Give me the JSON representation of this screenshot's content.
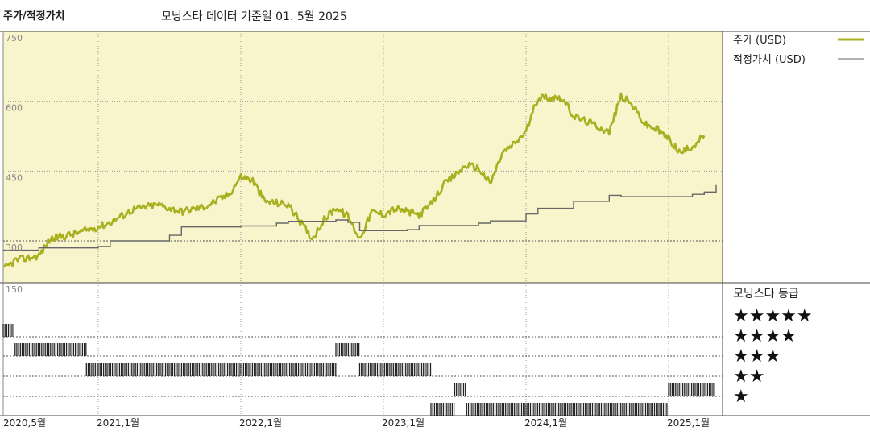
{
  "header": {
    "title": "주가/적정가치",
    "subtitle": "모닝스타 데이터 기준일 01. 5월 2025"
  },
  "colors": {
    "price": "#a8b020",
    "fair_value": "#666666",
    "plot_bg": "#f8f4cc",
    "grid": "#999999"
  },
  "chart_data": {
    "type": "line",
    "title": "주가/적정가치",
    "subtitle": "모닝스타 데이터 기준일 01. 5월 2025",
    "x_ticks": [
      "2020,5월",
      "2021,1월",
      "2022,1월",
      "2023,1월",
      "2024,1월",
      "2025,1월"
    ],
    "x_tick_dates": [
      "2020-05",
      "2021-01",
      "2022-01",
      "2023-01",
      "2024-01",
      "2025-01"
    ],
    "x_range": [
      "2020-05",
      "2025-05"
    ],
    "y_ticks": [
      "750",
      "600",
      "450",
      "300",
      "150"
    ],
    "ylim": [
      150,
      750
    ],
    "grid": true,
    "legend": {
      "position": "right",
      "items": [
        "주가 (USD)",
        "적정가치 (USD)"
      ]
    },
    "series": [
      {
        "name": "주가 (USD)",
        "points": [
          [
            "2020-05",
            238
          ],
          [
            "2020-06",
            258
          ],
          [
            "2020-08",
            268
          ],
          [
            "2020-09",
            305
          ],
          [
            "2020-11",
            315
          ],
          [
            "2021-01",
            330
          ],
          [
            "2021-02",
            340
          ],
          [
            "2021-04",
            368
          ],
          [
            "2021-06",
            378
          ],
          [
            "2021-08",
            363
          ],
          [
            "2021-10",
            374
          ],
          [
            "2021-12",
            400
          ],
          [
            "2022-01",
            438
          ],
          [
            "2022-02",
            430
          ],
          [
            "2022-03",
            385
          ],
          [
            "2022-05",
            378
          ],
          [
            "2022-07",
            305
          ],
          [
            "2022-08",
            345
          ],
          [
            "2022-09",
            372
          ],
          [
            "2022-10",
            353
          ],
          [
            "2022-11",
            305
          ],
          [
            "2022-12",
            362
          ],
          [
            "2023-01",
            357
          ],
          [
            "2023-02",
            369
          ],
          [
            "2023-04",
            356
          ],
          [
            "2023-05",
            378
          ],
          [
            "2023-06",
            418
          ],
          [
            "2023-08",
            463
          ],
          [
            "2023-09",
            456
          ],
          [
            "2023-10",
            423
          ],
          [
            "2023-11",
            488
          ],
          [
            "2023-12",
            508
          ],
          [
            "2024-01",
            535
          ],
          [
            "2024-02",
            608
          ],
          [
            "2024-04",
            608
          ],
          [
            "2024-05",
            568
          ],
          [
            "2024-07",
            547
          ],
          [
            "2024-08",
            533
          ],
          [
            "2024-09",
            612
          ],
          [
            "2024-10",
            590
          ],
          [
            "2024-11",
            550
          ],
          [
            "2024-12",
            540
          ],
          [
            "2025-01",
            520
          ],
          [
            "2025-02",
            488
          ],
          [
            "2025-03",
            503
          ],
          [
            "2025-04",
            526
          ]
        ]
      },
      {
        "name": "적정가치 (USD)",
        "points": [
          [
            "2020-05",
            280
          ],
          [
            "2020-07",
            280
          ],
          [
            "2020-08",
            285
          ],
          [
            "2021-01",
            288
          ],
          [
            "2021-02",
            300
          ],
          [
            "2021-07",
            312
          ],
          [
            "2021-08",
            330
          ],
          [
            "2022-01",
            332
          ],
          [
            "2022-04",
            338
          ],
          [
            "2022-05",
            342
          ],
          [
            "2022-09",
            345
          ],
          [
            "2022-10",
            340
          ],
          [
            "2022-11",
            322
          ],
          [
            "2023-03",
            324
          ],
          [
            "2023-04",
            333
          ],
          [
            "2023-09",
            338
          ],
          [
            "2023-10",
            343
          ],
          [
            "2024-01",
            358
          ],
          [
            "2024-02",
            370
          ],
          [
            "2024-05",
            385
          ],
          [
            "2024-08",
            398
          ],
          [
            "2024-09",
            395
          ],
          [
            "2025-02",
            395
          ],
          [
            "2025-03",
            400
          ],
          [
            "2025-04",
            405
          ],
          [
            "2025-05",
            420
          ]
        ]
      }
    ],
    "rating": {
      "title": "모닝스타 등급",
      "levels": [
        "★★★★★",
        "★★★★",
        "★★★",
        "★★",
        "★"
      ],
      "periods": [
        {
          "stars": 5,
          "from": "2020-05",
          "to": "2020-06"
        },
        {
          "stars": 4,
          "from": "2020-06",
          "to": "2020-12"
        },
        {
          "stars": 3,
          "from": "2020-12",
          "to": "2021-01"
        },
        {
          "stars": 3,
          "from": "2021-01",
          "to": "2022-09"
        },
        {
          "stars": 4,
          "from": "2022-09",
          "to": "2022-11"
        },
        {
          "stars": 3,
          "from": "2022-11",
          "to": "2023-05"
        },
        {
          "stars": 1,
          "from": "2023-05",
          "to": "2023-07"
        },
        {
          "stars": 2,
          "from": "2023-07",
          "to": "2023-08"
        },
        {
          "stars": 1,
          "from": "2023-08",
          "to": "2025-01"
        },
        {
          "stars": 2,
          "from": "2025-01",
          "to": "2025-05"
        }
      ]
    }
  }
}
